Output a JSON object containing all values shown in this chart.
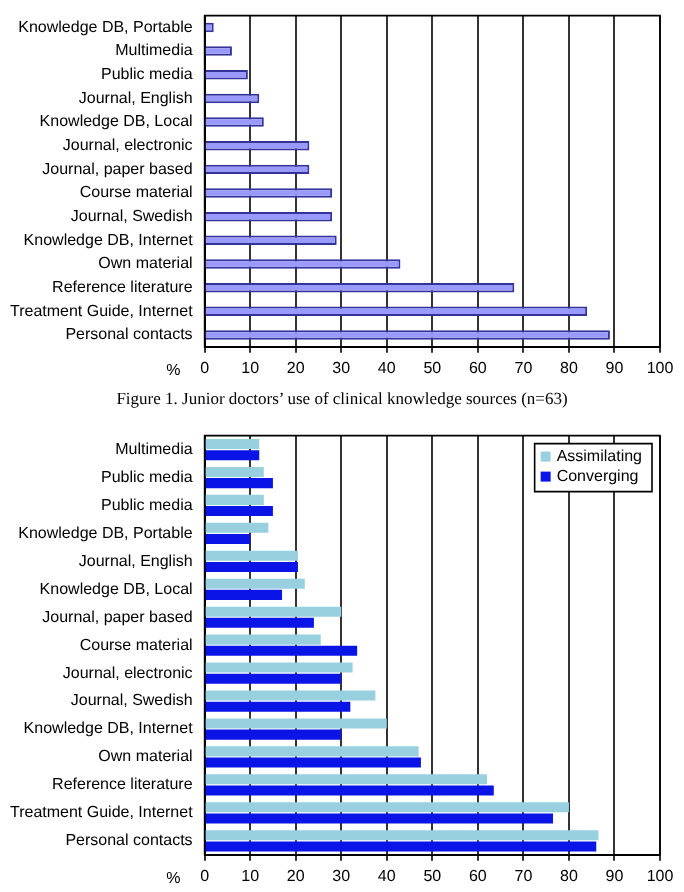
{
  "chart_data": [
    {
      "type": "bar",
      "orientation": "horizontal",
      "xlabel": "%",
      "grid": "x",
      "categories": [
        "Knowledge DB, Portable",
        "Multimedia",
        "Public media",
        "Journal, English",
        "Knowledge DB, Local",
        "Journal, electronic",
        "Journal, paper based",
        "Course material",
        "Journal, Swedish",
        "Knowledge DB, Internet",
        "Own material",
        "Reference literature",
        "Treatment Guide, Internet",
        "Personal contacts"
      ],
      "values": [
        2,
        6,
        9.5,
        12,
        13,
        23,
        23,
        28,
        28,
        29,
        43,
        68,
        84,
        89
      ],
      "color": "#9999ff",
      "xlim": [
        0,
        100
      ],
      "xticks": [
        0,
        10,
        20,
        30,
        40,
        50,
        60,
        70,
        80,
        90,
        100
      ],
      "annotations": [
        "Figure 1.   Junior doctors’ use of clinical knowledge sources (n=63)"
      ]
    },
    {
      "type": "bar",
      "orientation": "horizontal",
      "xlabel": "%",
      "grid": "x",
      "legend": "top right",
      "categories": [
        "Multimedia",
        "Public media",
        "Public media",
        "Knowledge DB, Portable",
        "Journal, English",
        "Knowledge DB, Local",
        "Journal, paper based",
        "Course material",
        "Journal, electronic",
        "Journal, Swedish",
        "Knowledge DB, Internet",
        "Own material",
        "Reference literature",
        "Treatment Guide, Internet",
        "Personal contacts"
      ],
      "series": [
        {
          "name": "Assimilating",
          "color": "#99d0e0",
          "values": [
            12,
            13,
            13,
            14,
            20.5,
            22,
            30,
            25.5,
            32.5,
            37.5,
            40,
            47,
            62,
            80,
            86.5
          ]
        },
        {
          "name": "Converging",
          "color": "#0a14e6",
          "values": [
            12,
            15,
            15,
            10,
            20.5,
            17,
            24,
            33.5,
            30,
            32,
            30,
            47.5,
            63.5,
            76.5,
            86
          ]
        }
      ],
      "xlim": [
        0,
        100
      ],
      "xticks": [
        0,
        10,
        20,
        30,
        40,
        50,
        60,
        70,
        80,
        90,
        100
      ]
    }
  ]
}
